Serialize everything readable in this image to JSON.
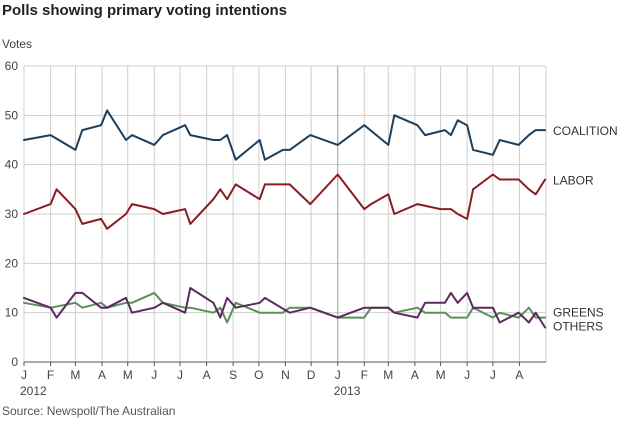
{
  "title": "Polls showing primary voting intentions",
  "source": "Source: Newspoll/The Australian",
  "colors": {
    "coalition": "#1c3f5e",
    "labor": "#8b1c24",
    "greens": "#5a9159",
    "others": "#5b2a5e",
    "grid": "#cfcfcf",
    "axis": "#555555"
  },
  "chart_data": {
    "type": "line",
    "ylabel": "Votes",
    "ylim": [
      0,
      60
    ],
    "y_ticks": [
      0,
      10,
      20,
      30,
      40,
      50,
      60
    ],
    "xlim": [
      "2012-01-01",
      "2013-09-01"
    ],
    "x_ticks": [
      {
        "date": "2012-01-01",
        "label": "J",
        "year": "2012"
      },
      {
        "date": "2012-02-01",
        "label": "F"
      },
      {
        "date": "2012-03-01",
        "label": "M"
      },
      {
        "date": "2012-04-01",
        "label": "A"
      },
      {
        "date": "2012-05-01",
        "label": "M"
      },
      {
        "date": "2012-06-01",
        "label": "J"
      },
      {
        "date": "2012-07-01",
        "label": "J"
      },
      {
        "date": "2012-08-01",
        "label": "A"
      },
      {
        "date": "2012-09-01",
        "label": "S"
      },
      {
        "date": "2012-10-01",
        "label": "O"
      },
      {
        "date": "2012-11-01",
        "label": "N"
      },
      {
        "date": "2012-12-01",
        "label": "D"
      },
      {
        "date": "2013-01-01",
        "label": "J",
        "year": "2013"
      },
      {
        "date": "2013-02-01",
        "label": "F"
      },
      {
        "date": "2013-03-01",
        "label": "M"
      },
      {
        "date": "2013-04-01",
        "label": "A"
      },
      {
        "date": "2013-05-01",
        "label": "M"
      },
      {
        "date": "2013-06-01",
        "label": "J"
      },
      {
        "date": "2013-07-01",
        "label": "J"
      },
      {
        "date": "2013-08-01",
        "label": "A"
      }
    ],
    "grid": true,
    "series": [
      {
        "name": "COALITION",
        "color": "#1c3f5e",
        "points": [
          [
            "2012-01-01",
            45
          ],
          [
            "2012-02-01",
            46
          ],
          [
            "2012-03-01",
            43
          ],
          [
            "2012-03-09",
            47
          ],
          [
            "2012-03-31",
            48
          ],
          [
            "2012-04-07",
            51
          ],
          [
            "2012-04-29",
            45
          ],
          [
            "2012-05-06",
            46
          ],
          [
            "2012-06-01",
            44
          ],
          [
            "2012-06-11",
            46
          ],
          [
            "2012-07-07",
            48
          ],
          [
            "2012-07-13",
            46
          ],
          [
            "2012-08-09",
            45
          ],
          [
            "2012-08-17",
            45
          ],
          [
            "2012-08-25",
            46
          ],
          [
            "2012-09-04",
            41
          ],
          [
            "2012-10-02",
            45
          ],
          [
            "2012-10-08",
            41
          ],
          [
            "2012-10-29",
            43
          ],
          [
            "2012-11-06",
            43
          ],
          [
            "2012-11-30",
            46
          ],
          [
            "2013-01-01",
            44
          ],
          [
            "2013-02-01",
            48
          ],
          [
            "2013-03-01",
            44
          ],
          [
            "2013-03-08",
            50
          ],
          [
            "2013-04-04",
            48
          ],
          [
            "2013-04-13",
            46
          ],
          [
            "2013-05-06",
            47
          ],
          [
            "2013-05-13",
            46
          ],
          [
            "2013-05-21",
            49
          ],
          [
            "2013-06-01",
            48
          ],
          [
            "2013-06-08",
            43
          ],
          [
            "2013-07-01",
            42
          ],
          [
            "2013-07-09",
            45
          ],
          [
            "2013-07-31",
            44
          ],
          [
            "2013-08-12",
            46
          ],
          [
            "2013-08-20",
            47
          ],
          [
            "2013-08-31",
            47
          ]
        ]
      },
      {
        "name": "LABOR",
        "color": "#8b1c24",
        "points": [
          [
            "2012-01-01",
            30
          ],
          [
            "2012-02-01",
            32
          ],
          [
            "2012-02-08",
            35
          ],
          [
            "2012-03-01",
            31
          ],
          [
            "2012-03-09",
            28
          ],
          [
            "2012-03-31",
            29
          ],
          [
            "2012-04-07",
            27
          ],
          [
            "2012-04-29",
            30
          ],
          [
            "2012-05-06",
            32
          ],
          [
            "2012-06-01",
            31
          ],
          [
            "2012-06-11",
            30
          ],
          [
            "2012-07-07",
            31
          ],
          [
            "2012-07-13",
            28
          ],
          [
            "2012-08-09",
            33
          ],
          [
            "2012-08-17",
            35
          ],
          [
            "2012-08-25",
            33
          ],
          [
            "2012-09-04",
            36
          ],
          [
            "2012-10-02",
            33
          ],
          [
            "2012-10-08",
            36
          ],
          [
            "2012-11-06",
            36
          ],
          [
            "2012-11-30",
            32
          ],
          [
            "2013-01-01",
            38
          ],
          [
            "2013-02-01",
            31
          ],
          [
            "2013-02-09",
            32
          ],
          [
            "2013-03-01",
            34
          ],
          [
            "2013-03-08",
            30
          ],
          [
            "2013-04-04",
            32
          ],
          [
            "2013-05-01",
            31
          ],
          [
            "2013-05-13",
            31
          ],
          [
            "2013-05-21",
            30
          ],
          [
            "2013-06-01",
            29
          ],
          [
            "2013-06-08",
            35
          ],
          [
            "2013-07-01",
            38
          ],
          [
            "2013-07-09",
            37
          ],
          [
            "2013-07-31",
            37
          ],
          [
            "2013-08-12",
            35
          ],
          [
            "2013-08-20",
            34
          ],
          [
            "2013-08-31",
            37
          ]
        ]
      },
      {
        "name": "GREENS",
        "color": "#5a9159",
        "points": [
          [
            "2012-01-01",
            12
          ],
          [
            "2012-02-01",
            11
          ],
          [
            "2012-03-01",
            12
          ],
          [
            "2012-03-09",
            11
          ],
          [
            "2012-03-31",
            12
          ],
          [
            "2012-04-07",
            11
          ],
          [
            "2012-04-29",
            12
          ],
          [
            "2012-05-06",
            12
          ],
          [
            "2012-06-01",
            14
          ],
          [
            "2012-06-11",
            12
          ],
          [
            "2012-07-07",
            11
          ],
          [
            "2012-07-13",
            11
          ],
          [
            "2012-08-09",
            10
          ],
          [
            "2012-08-17",
            11
          ],
          [
            "2012-08-25",
            8
          ],
          [
            "2012-09-04",
            12
          ],
          [
            "2012-10-02",
            10
          ],
          [
            "2012-10-08",
            10
          ],
          [
            "2012-10-29",
            10
          ],
          [
            "2012-11-06",
            11
          ],
          [
            "2012-11-30",
            11
          ],
          [
            "2013-01-01",
            9
          ],
          [
            "2013-02-01",
            9
          ],
          [
            "2013-02-09",
            11
          ],
          [
            "2013-03-01",
            11
          ],
          [
            "2013-03-08",
            10
          ],
          [
            "2013-04-04",
            11
          ],
          [
            "2013-04-13",
            10
          ],
          [
            "2013-05-06",
            10
          ],
          [
            "2013-05-13",
            9
          ],
          [
            "2013-06-01",
            9
          ],
          [
            "2013-06-08",
            11
          ],
          [
            "2013-07-01",
            9
          ],
          [
            "2013-07-09",
            10
          ],
          [
            "2013-07-31",
            9
          ],
          [
            "2013-08-12",
            11
          ],
          [
            "2013-08-20",
            9
          ],
          [
            "2013-08-31",
            9
          ]
        ]
      },
      {
        "name": "OTHERS",
        "color": "#5b2a5e",
        "points": [
          [
            "2012-01-01",
            13
          ],
          [
            "2012-02-01",
            11
          ],
          [
            "2012-02-08",
            9
          ],
          [
            "2012-03-01",
            14
          ],
          [
            "2012-03-09",
            14
          ],
          [
            "2012-03-31",
            11
          ],
          [
            "2012-04-07",
            11
          ],
          [
            "2012-04-29",
            13
          ],
          [
            "2012-05-06",
            10
          ],
          [
            "2012-06-01",
            11
          ],
          [
            "2012-06-11",
            12
          ],
          [
            "2012-07-07",
            10
          ],
          [
            "2012-07-13",
            15
          ],
          [
            "2012-08-09",
            12
          ],
          [
            "2012-08-17",
            9
          ],
          [
            "2012-08-25",
            13
          ],
          [
            "2012-09-04",
            11
          ],
          [
            "2012-10-02",
            12
          ],
          [
            "2012-10-08",
            13
          ],
          [
            "2012-11-06",
            10
          ],
          [
            "2012-11-30",
            11
          ],
          [
            "2013-01-01",
            9
          ],
          [
            "2013-02-01",
            11
          ],
          [
            "2013-03-01",
            11
          ],
          [
            "2013-03-08",
            10
          ],
          [
            "2013-04-04",
            9
          ],
          [
            "2013-04-13",
            12
          ],
          [
            "2013-05-06",
            12
          ],
          [
            "2013-05-13",
            14
          ],
          [
            "2013-05-21",
            12
          ],
          [
            "2013-06-01",
            14
          ],
          [
            "2013-06-08",
            11
          ],
          [
            "2013-07-01",
            11
          ],
          [
            "2013-07-09",
            8
          ],
          [
            "2013-07-31",
            10
          ],
          [
            "2013-08-12",
            8
          ],
          [
            "2013-08-20",
            10
          ],
          [
            "2013-08-31",
            7
          ]
        ]
      }
    ],
    "legend": [
      "COALITION",
      "LABOR",
      "GREENS",
      "OTHERS"
    ],
    "legend_placement": "right, inline at line ends"
  }
}
